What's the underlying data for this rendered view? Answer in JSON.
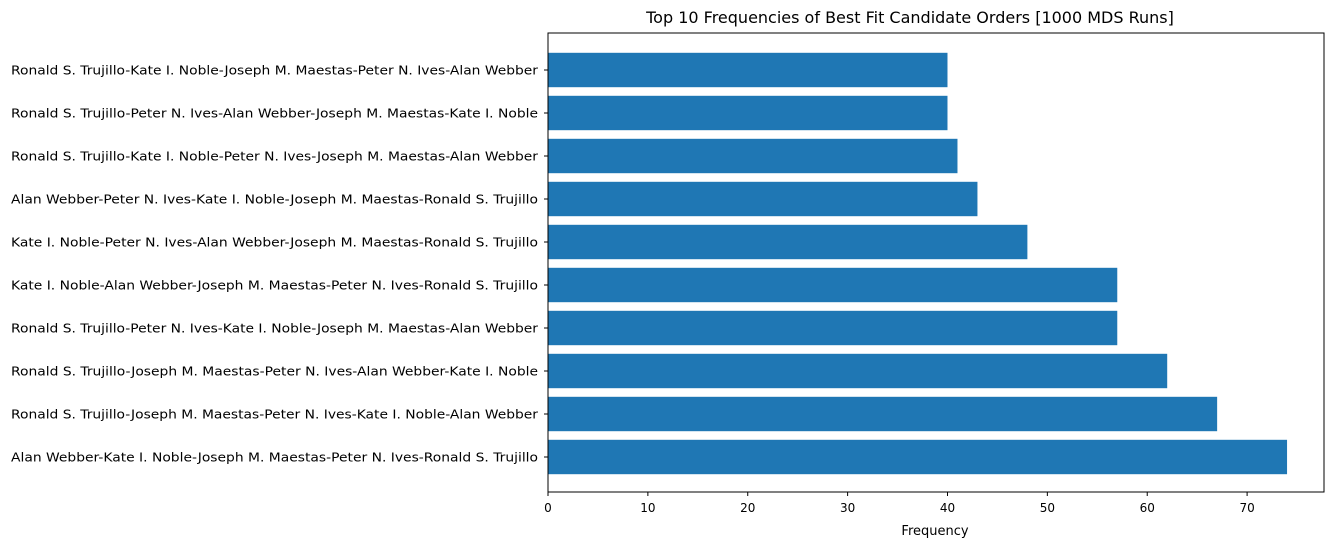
{
  "chart_data": {
    "type": "bar",
    "orientation": "horizontal",
    "title": "Top 10 Frequencies of Best Fit Candidate Orders [1000 MDS Runs]",
    "xlabel": "Frequency",
    "ylabel": "",
    "xlim": [
      0,
      77.7
    ],
    "xticks": [
      0,
      10,
      20,
      30,
      40,
      50,
      60,
      70
    ],
    "grid": false,
    "bar_color": "#1f77b4",
    "categories": [
      "Ronald S. Trujillo-Kate I. Noble-Joseph M. Maestas-Peter N. Ives-Alan Webber",
      "Ronald S. Trujillo-Peter N. Ives-Alan Webber-Joseph M. Maestas-Kate I. Noble",
      "Ronald S. Trujillo-Kate I. Noble-Peter N. Ives-Joseph M. Maestas-Alan Webber",
      "Alan Webber-Peter N. Ives-Kate I. Noble-Joseph M. Maestas-Ronald S. Trujillo",
      "Kate I. Noble-Peter N. Ives-Alan Webber-Joseph M. Maestas-Ronald S. Trujillo",
      "Kate I. Noble-Alan Webber-Joseph M. Maestas-Peter N. Ives-Ronald S. Trujillo",
      "Ronald S. Trujillo-Peter N. Ives-Kate I. Noble-Joseph M. Maestas-Alan Webber",
      "Ronald S. Trujillo-Joseph M. Maestas-Peter N. Ives-Alan Webber-Kate I. Noble",
      "Ronald S. Trujillo-Joseph M. Maestas-Peter N. Ives-Kate I. Noble-Alan Webber",
      "Alan Webber-Kate I. Noble-Joseph M. Maestas-Peter N. Ives-Ronald S. Trujillo"
    ],
    "values": [
      40,
      40,
      41,
      43,
      48,
      57,
      57,
      62,
      67,
      74
    ]
  }
}
